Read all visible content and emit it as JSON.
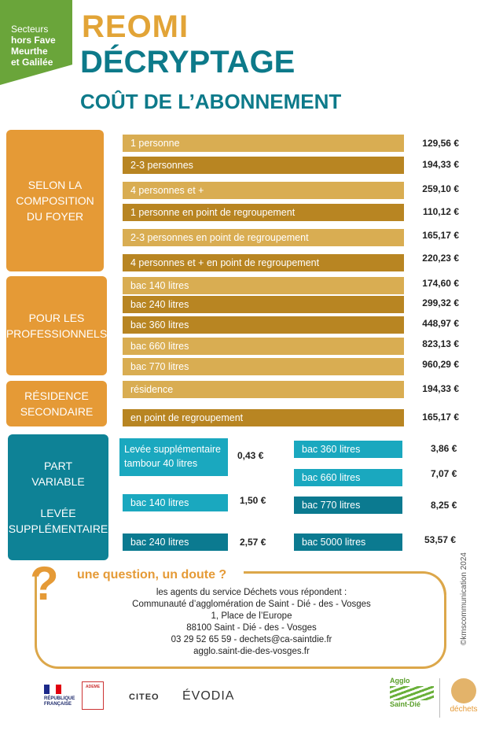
{
  "sector": {
    "line1": "Secteurs",
    "line2": "hors Fave",
    "line3": "Meurthe",
    "line4": "et Galilée"
  },
  "title": {
    "line1": "REOMI",
    "line2": "DÉCRYPTAGE",
    "line3": "COÛT DE L’ABONNEMENT"
  },
  "categories": {
    "foyer": {
      "l1": "SELON LA",
      "l2": "COMPOSITION",
      "l3": "DU FOYER"
    },
    "pro": {
      "l1": "POUR LES",
      "l2": "PROFESSIONNELS"
    },
    "residence": {
      "l1": "RÉSIDENCE",
      "l2": "SECONDAIRE"
    },
    "variable": {
      "l1": "PART",
      "l2": "VARIABLE",
      "l3": "LEVÉE",
      "l4": "SUPPLÉMENTAIRE"
    }
  },
  "rates": [
    {
      "label": "1 personne",
      "price": "129,56 €"
    },
    {
      "label": "2-3 personnes",
      "price": "194,33 €"
    },
    {
      "label": "4 personnes et +",
      "price": "259,10 €"
    },
    {
      "label": "1 personne en point de regroupement",
      "price": "110,12 €"
    },
    {
      "label": "2-3 personnes en point de regroupement",
      "price": "165,17 €"
    },
    {
      "label": "4 personnes et + en point de regroupement",
      "price": "220,23 €"
    },
    {
      "label": "bac 140 litres",
      "price": "174,60 €"
    },
    {
      "label": "bac 240 litres",
      "price": "299,32 €"
    },
    {
      "label": "bac 360 litres",
      "price": "448,97 €"
    },
    {
      "label": "bac 660 litres",
      "price": "823,13 €"
    },
    {
      "label": "bac 770 litres",
      "price": "960,29 €"
    },
    {
      "label": "résidence",
      "price": "194,33 €"
    },
    {
      "label": "en point de regroupement",
      "price": "165,17 €"
    }
  ],
  "variable": [
    {
      "label1": "Levée supplémentaire",
      "label2": "tambour 40 litres",
      "price": "0,43 €"
    },
    {
      "label": "bac 140 litres",
      "price": "1,50 €"
    },
    {
      "label": "bac 240 litres",
      "price": "2,57 €"
    },
    {
      "label": "bac 360 litres",
      "price": "3,86 €"
    },
    {
      "label": "bac 660 litres",
      "price": "7,07 €"
    },
    {
      "label": "bac 770 litres",
      "price": "8,25 €"
    },
    {
      "label": "bac 5000  litres",
      "price": "53,57 €"
    }
  ],
  "question": {
    "mark": "?",
    "title": "une question, un doute ?",
    "lines": [
      "les agents du service Déchets vous répondent :",
      "Communauté d’agglomération de Saint - Dié - des - Vosges",
      "1, Place de l’Europe",
      "88100 Saint - Dié - des - Vosges",
      "03 29 52 65 59 - dechets@ca-saintdie.fr",
      "agglo.saint-die-des-vosges.fr"
    ]
  },
  "credit": "©kmscommunication 2024",
  "logos": {
    "rf": {
      "l1": "RÉPUBLIQUE",
      "l2": "FRANÇAISE"
    },
    "ademe": "ADEME",
    "citeo": "CITEO",
    "evodia": "ÉVODIA",
    "agglo": {
      "t": "Agglo",
      "n": "Saint-Dié"
    },
    "dechets": "déchets"
  }
}
